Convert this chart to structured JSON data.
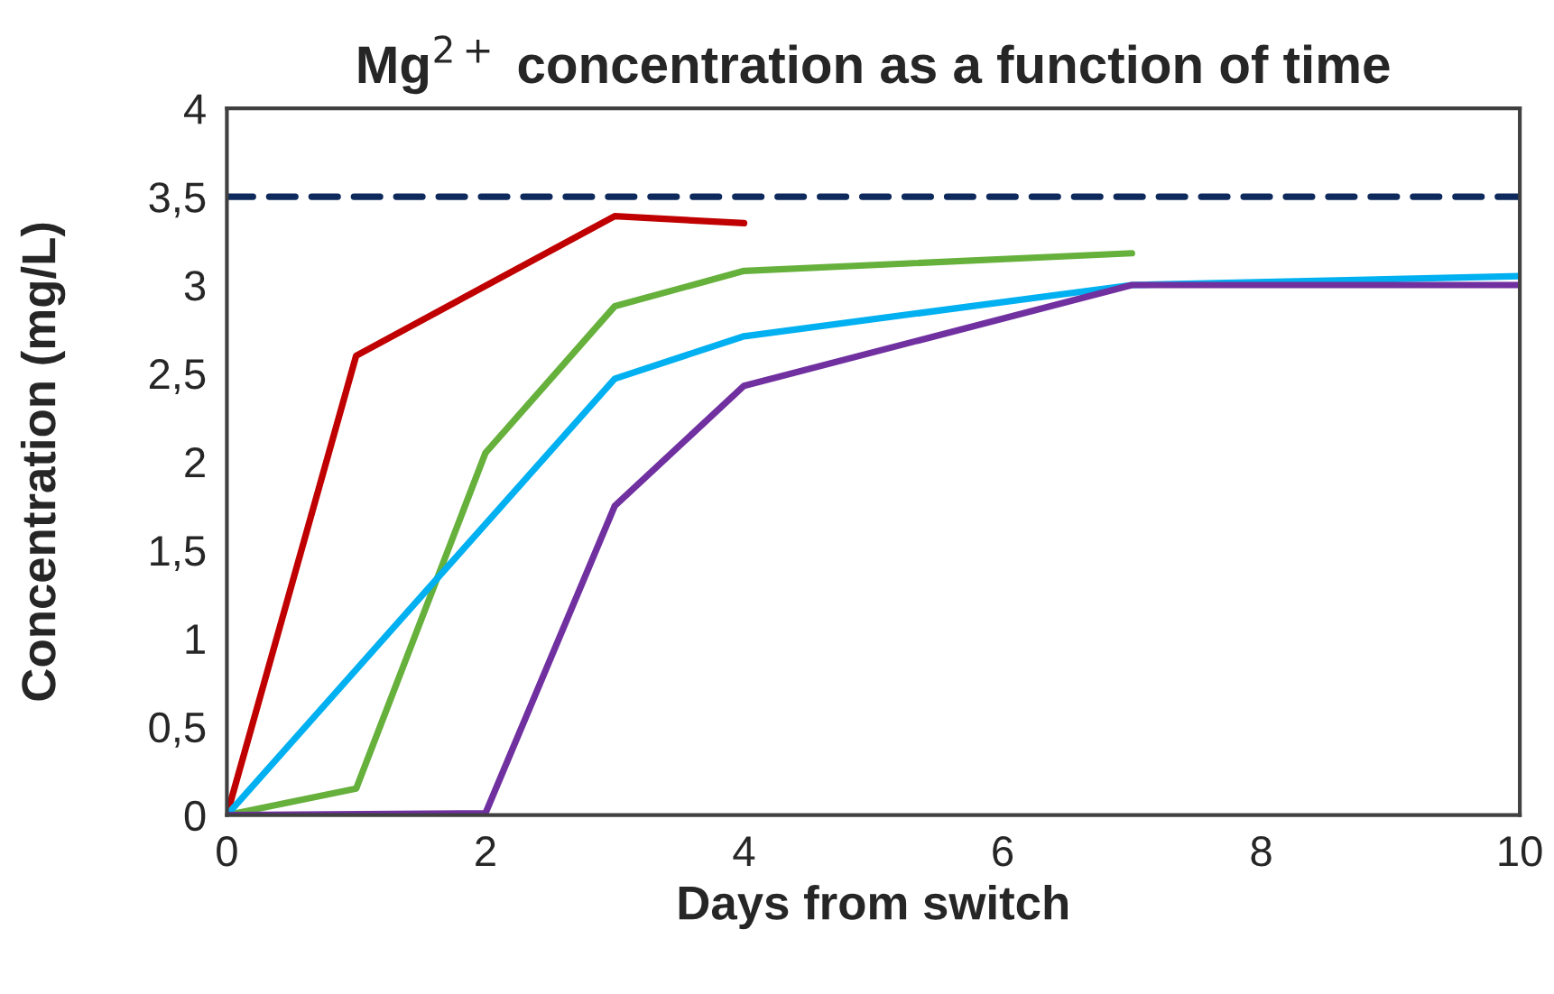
{
  "chart_data": {
    "type": "line",
    "title": "Mg$^{2+}$ concentration as a function of time",
    "xlabel": "Days from switch",
    "ylabel": "Concentration (mg/L)",
    "series": [
      {
        "color": "#c00000",
        "x": [
          0,
          1,
          3,
          4
        ],
        "values": [
          0,
          2.6,
          3.39,
          3.35
        ]
      },
      {
        "color": "#66b03c",
        "x": [
          0,
          1,
          2,
          3,
          4,
          7
        ],
        "values": [
          0,
          0.15,
          2.05,
          2.88,
          3.08,
          3.18
        ]
      },
      {
        "color": "#00b0f0",
        "x": [
          0,
          3,
          4,
          7,
          10
        ],
        "values": [
          0,
          2.47,
          2.71,
          3.0,
          3.05
        ]
      },
      {
        "color": "#7030a0",
        "x": [
          0,
          2,
          3,
          4,
          7,
          10
        ],
        "values": [
          0,
          0.01,
          1.75,
          2.43,
          3.0,
          3.0
        ]
      }
    ],
    "ref_lines": [
      {
        "axis": "y",
        "value": 3.5,
        "color": "#0e2a5c",
        "line_style": "dashed"
      }
    ],
    "xlim": [
      0,
      10
    ],
    "xticks": [
      0,
      2,
      4,
      6,
      8,
      10
    ],
    "ylim": [
      0,
      4
    ],
    "yticks": [
      0,
      {
        "value": 0.5,
        "label": "0,5"
      },
      1,
      {
        "value": 1.5,
        "label": "1,5"
      },
      2,
      {
        "value": 2.5,
        "label": "2,5"
      },
      3,
      {
        "value": 3.5,
        "label": "3,5"
      },
      4
    ],
    "grid": false,
    "marker": "none",
    "line_style": "solid"
  }
}
